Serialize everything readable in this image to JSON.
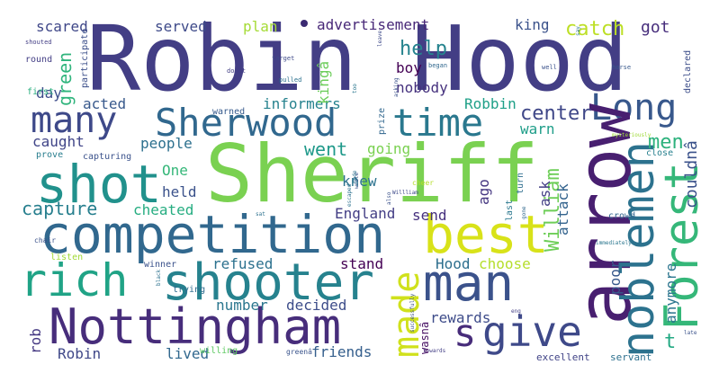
{
  "words": [
    {
      "id": "robin-hood",
      "text": "Robin Hood",
      "color": "#433e85"
    },
    {
      "id": "sheriff",
      "text": "Sheriff",
      "color": "#7ad151"
    },
    {
      "id": "competition",
      "text": "competition",
      "color": "#31688e"
    },
    {
      "id": "shooter",
      "text": "shooter",
      "color": "#26828e"
    },
    {
      "id": "nottingham",
      "text": "Nottingham",
      "color": "#472d7b"
    },
    {
      "id": "rich",
      "text": "rich",
      "color": "#20a386"
    },
    {
      "id": "man",
      "text": "man",
      "color": "#3b528b"
    },
    {
      "id": "shot",
      "text": "shot",
      "color": "#21918c"
    },
    {
      "id": "best",
      "text": "best",
      "color": "#d8e219"
    },
    {
      "id": "arrow",
      "text": "arrow",
      "color": "#481f70"
    },
    {
      "id": "noblemen",
      "text": "noblemen",
      "color": "#2c728e"
    },
    {
      "id": "forest",
      "text": "Forest",
      "color": "#35b779"
    },
    {
      "id": "sherwood",
      "text": "Sherwood",
      "color": "#31688e"
    },
    {
      "id": "time",
      "text": "time",
      "color": "#2a788e"
    },
    {
      "id": "long",
      "text": "Long",
      "color": "#3e4989"
    },
    {
      "id": "many",
      "text": "many",
      "color": "#38588c"
    },
    {
      "id": "give",
      "text": "give",
      "color": "#3e4989"
    },
    {
      "id": "made",
      "text": "made",
      "color": "#d0e11c"
    },
    {
      "id": "s",
      "text": "s",
      "color": "#472c7a"
    },
    {
      "id": "help",
      "text": "help",
      "color": "#25838e"
    },
    {
      "id": "catch",
      "text": "catch",
      "color": "#bddf26"
    },
    {
      "id": "center",
      "text": "center",
      "color": "#3f4788"
    },
    {
      "id": "men",
      "text": "men",
      "color": "#2db27d"
    },
    {
      "id": "went",
      "text": "went",
      "color": "#1f998a"
    },
    {
      "id": "william",
      "text": "William",
      "color": "#6ece58"
    },
    {
      "id": "capture",
      "text": "capture",
      "color": "#277f8e"
    },
    {
      "id": "t",
      "text": "t",
      "color": "#23a983"
    },
    {
      "id": "green",
      "text": "green",
      "color": "#2fb47c"
    },
    {
      "id": "scared",
      "text": "scared",
      "color": "#3f4788"
    },
    {
      "id": "served",
      "text": "served",
      "color": "#3e4a89"
    },
    {
      "id": "plan",
      "text": "plan",
      "color": "#a5db36"
    },
    {
      "id": "advertisement",
      "text": "advertisement",
      "color": "#482878"
    },
    {
      "id": "king",
      "text": "king",
      "color": "#3b528b"
    },
    {
      "id": "kinga",
      "text": "kingâ",
      "color": "#6ccd5a"
    },
    {
      "id": "got",
      "text": "got",
      "color": "#472e7c"
    },
    {
      "id": "day",
      "text": "day",
      "color": "#3d4d8a"
    },
    {
      "id": "acted",
      "text": "acted",
      "color": "#38598c"
    },
    {
      "id": "informers",
      "text": "informers",
      "color": "#26828e"
    },
    {
      "id": "robbin",
      "text": "Robbin",
      "color": "#1fa088"
    },
    {
      "id": "boy",
      "text": "boy",
      "color": "#440154"
    },
    {
      "id": "nobody",
      "text": "nobody",
      "color": "#46327e"
    },
    {
      "id": "caught",
      "text": "caught",
      "color": "#404588"
    },
    {
      "id": "people",
      "text": "people",
      "color": "#2d708e"
    },
    {
      "id": "going",
      "text": "going",
      "color": "#7ad151"
    },
    {
      "id": "warn",
      "text": "warn",
      "color": "#1f9e89"
    },
    {
      "id": "couldna",
      "text": "couldnâ",
      "color": "#3b528b"
    },
    {
      "id": "one",
      "text": "One",
      "color": "#35b779"
    },
    {
      "id": "knew",
      "text": "knew",
      "color": "#2c728e"
    },
    {
      "id": "ago",
      "text": "ago",
      "color": "#453781"
    },
    {
      "id": "ask",
      "text": "ask",
      "color": "#433e85"
    },
    {
      "id": "held",
      "text": "held",
      "color": "#3b528b"
    },
    {
      "id": "cheated",
      "text": "cheated",
      "color": "#26ad81"
    },
    {
      "id": "england",
      "text": "England",
      "color": "#433e85"
    },
    {
      "id": "send",
      "text": "send",
      "color": "#46307e"
    },
    {
      "id": "attack",
      "text": "attack",
      "color": "#33638d"
    },
    {
      "id": "refused",
      "text": "refused",
      "color": "#2c718e"
    },
    {
      "id": "stand",
      "text": "stand",
      "color": "#440154"
    },
    {
      "id": "hood",
      "text": "Hood",
      "color": "#2e6f8e"
    },
    {
      "id": "choose",
      "text": "choose",
      "color": "#b5de2b"
    },
    {
      "id": "poor",
      "text": "poor",
      "color": "#38598c"
    },
    {
      "id": "anymore",
      "text": "anymore",
      "color": "#2b758e"
    },
    {
      "id": "number",
      "text": "number",
      "color": "#2a768e"
    },
    {
      "id": "decided",
      "text": "decided",
      "color": "#3d4d8a"
    },
    {
      "id": "rewards",
      "text": "rewards",
      "color": "#3e4c8a"
    },
    {
      "id": "rob",
      "text": "rob",
      "color": "#453882"
    },
    {
      "id": "robin",
      "text": "Robin",
      "color": "#3f4788"
    },
    {
      "id": "lived",
      "text": "lived",
      "color": "#31688e"
    },
    {
      "id": "friends",
      "text": "friends",
      "color": "#355f8d"
    },
    {
      "id": "wasna",
      "text": "wasnâ",
      "color": "#471063"
    },
    {
      "id": "excellent",
      "text": "excellent",
      "color": "#414487"
    },
    {
      "id": "servant",
      "text": "servant",
      "color": "#2d708e"
    },
    {
      "id": "prove",
      "text": "prove",
      "color": "#287d8e"
    },
    {
      "id": "capturing",
      "text": "capturing",
      "color": "#3b528b"
    },
    {
      "id": "warned",
      "text": "warned",
      "color": "#375b8d"
    },
    {
      "id": "round",
      "text": "round",
      "color": "#433e85"
    },
    {
      "id": "first",
      "text": "first",
      "color": "#29af7f"
    },
    {
      "id": "participate",
      "text": "participate",
      "color": "#3c4f8a"
    },
    {
      "id": "listen",
      "text": "listen",
      "color": "#a2da37"
    },
    {
      "id": "trying",
      "text": "trying",
      "color": "#2f6c8e"
    },
    {
      "id": "winner",
      "text": "winner",
      "color": "#3b528b"
    },
    {
      "id": "willing",
      "text": "willing",
      "color": "#5ec962"
    },
    {
      "id": "greena",
      "text": "greenâ",
      "color": "#3a548c"
    },
    {
      "id": "crowd",
      "text": "crowd",
      "color": "#32648e"
    },
    {
      "id": "close",
      "text": "close",
      "color": "#27808e"
    },
    {
      "id": "declared",
      "text": "declared",
      "color": "#3d4e8a"
    },
    {
      "id": "last",
      "text": "last",
      "color": "#2a778e"
    },
    {
      "id": "prize",
      "text": "prize",
      "color": "#31678e"
    },
    {
      "id": "turn",
      "text": "turn",
      "color": "#2e6e8e"
    },
    {
      "id": "chair",
      "text": "chair",
      "color": "#3b528b"
    },
    {
      "id": "doubt",
      "text": "doubt",
      "color": "#433e85"
    },
    {
      "id": "pulled",
      "text": "pulled",
      "color": "#2c718e"
    },
    {
      "id": "target",
      "text": "target",
      "color": "#3e4a89"
    },
    {
      "id": "began",
      "text": "began",
      "color": "#31688e"
    },
    {
      "id": "horse",
      "text": "horse",
      "color": "#38598c"
    },
    {
      "id": "well",
      "text": "well",
      "color": "#3b528b"
    },
    {
      "id": "cheer",
      "text": "cheer",
      "color": "#b5de2b"
    },
    {
      "id": "shouted",
      "text": "shouted",
      "color": "#433e85"
    },
    {
      "id": "escaped",
      "text": "escaped",
      "color": "#2c718e"
    },
    {
      "id": "mysteriously",
      "text": "mysteriously",
      "color": "#a0da39"
    },
    {
      "id": "immediately",
      "text": "immediately",
      "color": "#2a768e"
    },
    {
      "id": "successfully",
      "text": "successfully",
      "color": "#3b528b"
    },
    {
      "id": "black",
      "text": "black",
      "color": "#2c718e"
    },
    {
      "id": "wrote",
      "text": "wrote",
      "color": "#3b528b"
    },
    {
      "id": "willliam",
      "text": "Willliam",
      "color": "#3e4a89"
    },
    {
      "id": "gone",
      "text": "gone",
      "color": "#31688e"
    },
    {
      "id": "leave",
      "text": "leave",
      "color": "#3e4a89"
    },
    {
      "id": "late",
      "text": "late",
      "color": "#3b528b"
    },
    {
      "id": "sat",
      "text": "sat",
      "color": "#2c718e"
    },
    {
      "id": "eng",
      "text": "eng",
      "color": "#433e85"
    },
    {
      "id": "too",
      "text": "too",
      "color": "#2a768e"
    },
    {
      "id": "asking",
      "text": "asking",
      "color": "#3b528b"
    },
    {
      "id": "towards",
      "text": "towards",
      "color": "#433e85"
    },
    {
      "id": "made-small",
      "text": "made",
      "color": "#2c718e"
    },
    {
      "id": "also",
      "text": "also",
      "color": "#3b528b"
    },
    {
      "id": "say",
      "text": "say",
      "color": "#2a768e"
    }
  ]
}
